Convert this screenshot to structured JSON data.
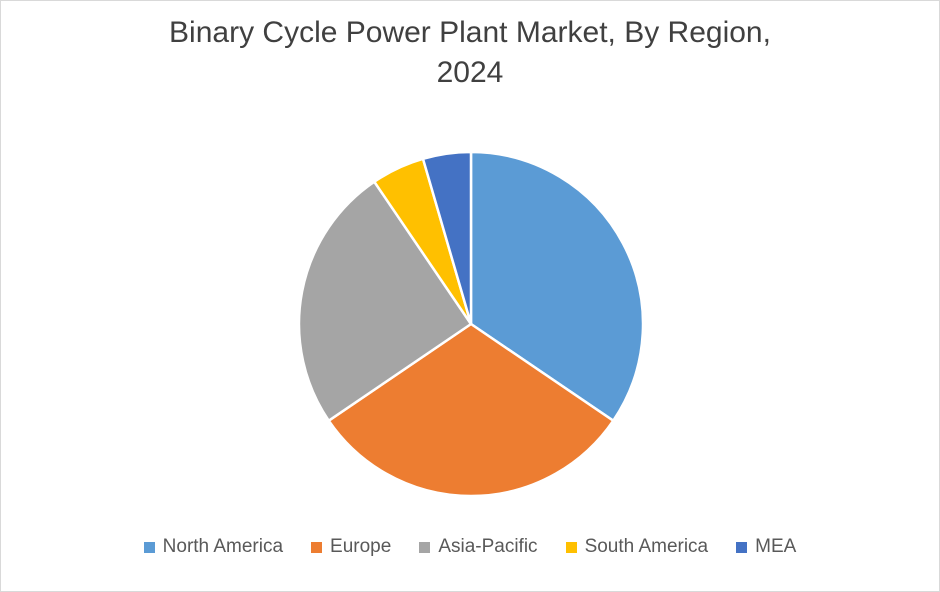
{
  "chart_data": {
    "type": "pie",
    "title_lines": [
      "Binary Cycle Power Plant Market, By Region,",
      "2024"
    ],
    "categories": [
      "North America",
      "Europe",
      "Asia-Pacific",
      "South America",
      "MEA"
    ],
    "values": [
      34.5,
      31,
      25,
      5,
      4.5
    ],
    "colors": [
      "#5b9bd5",
      "#ed7d31",
      "#a5a5a5",
      "#ffc000",
      "#4472c4"
    ],
    "legend_position": "bottom"
  }
}
